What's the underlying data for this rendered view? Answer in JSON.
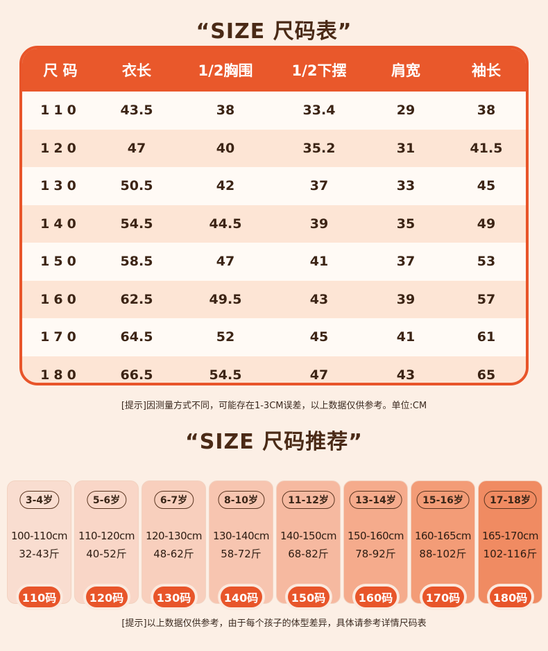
{
  "title1": "“SIZE 尺码表”",
  "title2": "“SIZE 尺码推荐”",
  "table": {
    "headers": [
      "尺 码",
      "衣长",
      "1/2胸围",
      "1/2下摆",
      "肩宽",
      "袖长"
    ],
    "rows": [
      [
        "110",
        "43.5",
        "38",
        "33.4",
        "29",
        "38"
      ],
      [
        "120",
        "47",
        "40",
        "35.2",
        "31",
        "41.5"
      ],
      [
        "130",
        "50.5",
        "42",
        "37",
        "33",
        "45"
      ],
      [
        "140",
        "54.5",
        "44.5",
        "39",
        "35",
        "49"
      ],
      [
        "150",
        "58.5",
        "47",
        "41",
        "37",
        "53"
      ],
      [
        "160",
        "62.5",
        "49.5",
        "43",
        "39",
        "57"
      ],
      [
        "170",
        "64.5",
        "52",
        "45",
        "41",
        "61"
      ],
      [
        "180",
        "66.5",
        "54.5",
        "47",
        "43",
        "65"
      ]
    ]
  },
  "note1": "[提示]因测量方式不同，可能存在1-3CM误差，以上数据仅供参考。单位:CM",
  "recommend": [
    {
      "age": "3-4岁",
      "height": "100-110cm",
      "weight": "32-43斤",
      "size": "110码"
    },
    {
      "age": "5-6岁",
      "height": "110-120cm",
      "weight": "40-52斤",
      "size": "120码"
    },
    {
      "age": "6-7岁",
      "height": "120-130cm",
      "weight": "48-62斤",
      "size": "130码"
    },
    {
      "age": "8-10岁",
      "height": "130-140cm",
      "weight": "58-72斤",
      "size": "140码"
    },
    {
      "age": "11-12岁",
      "height": "140-150cm",
      "weight": "68-82斤",
      "size": "150码"
    },
    {
      "age": "13-14岁",
      "height": "150-160cm",
      "weight": "78-92斤",
      "size": "160码"
    },
    {
      "age": "15-16岁",
      "height": "160-165cm",
      "weight": "88-102斤",
      "size": "170码"
    },
    {
      "age": "17-18岁",
      "height": "165-170cm",
      "weight": "102-116斤",
      "size": "180码"
    }
  ],
  "card_colors": [
    "#f9ddd0",
    "#f9d6c7",
    "#f8cfbd",
    "#f7c5b0",
    "#f6b9a0",
    "#f5ab8c",
    "#f39c77",
    "#f08b62"
  ],
  "accent_color": "#e8552a",
  "note2": "[提示]以上数据仅供参考，由于每个孩子的体型差异，具体请参考详情尺码表"
}
